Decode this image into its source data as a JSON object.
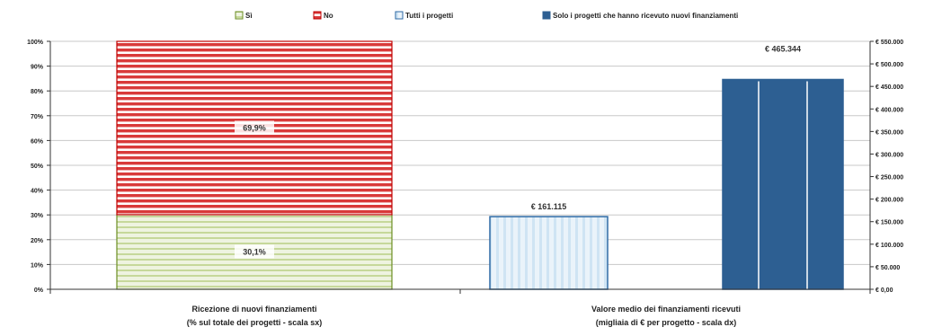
{
  "chart_data": {
    "type": "bar",
    "legend": {
      "position": "top",
      "items": [
        {
          "label": "Sì",
          "swatch": "green-hatch"
        },
        {
          "label": "No",
          "swatch": "red-hatch"
        },
        {
          "label": "Tutti i progetti",
          "swatch": "lightblue-hatch"
        },
        {
          "label": "Solo i progetti che hanno ricevuto nuovi finanziamenti",
          "swatch": "darkblue"
        }
      ]
    },
    "categories": [
      {
        "line1": "Ricezione di nuovi finanziamenti",
        "line2": "(% sul totale dei progetti - scala sx)"
      },
      {
        "line1": "Valore medio dei finanziamenti ricevuti",
        "line2": "(migliaia di € per progetto - scala dx)"
      }
    ],
    "left_axis": {
      "ylim": [
        0,
        100
      ],
      "ticks": [
        "0%",
        "10%",
        "20%",
        "30%",
        "40%",
        "50%",
        "60%",
        "70%",
        "80%",
        "90%",
        "100%"
      ]
    },
    "right_axis": {
      "ylim": [
        0,
        550000
      ],
      "ticks": [
        "€ 0,00",
        "€ 50.000",
        "€ 100.000",
        "€ 150.000",
        "€ 200.000",
        "€ 250.000",
        "€ 300.000",
        "€ 350.000",
        "€ 400.000",
        "€ 450.000",
        "€ 500.000",
        "€ 550.000"
      ]
    },
    "stacked": [
      {
        "name": "Sì",
        "value": 30.1,
        "label": "30,1%",
        "color": "#9bbb59"
      },
      {
        "name": "No",
        "value": 69.9,
        "label": "69,9%",
        "color": "#d93a3a"
      }
    ],
    "right_bars": [
      {
        "name": "Tutti i progetti",
        "value": 161115,
        "label": "€ 161.115",
        "color": "#2e6aa5"
      },
      {
        "name": "Solo i progetti che hanno ricevuto nuovi finanziamenti",
        "value": 465344,
        "label": "€ 465.344",
        "color": "#2d5f92"
      }
    ],
    "grid": true
  }
}
